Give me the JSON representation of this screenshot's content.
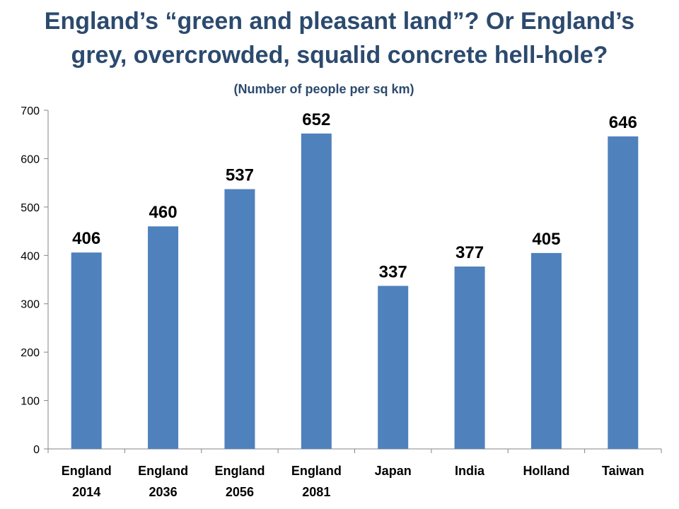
{
  "slide": {
    "title_line_1": "England’s “green and pleasant land”? Or England’s",
    "title_line_2": "grey, overcrowded, squalid concrete hell-hole?",
    "subtitle": "(Number of people per sq km)"
  },
  "colors": {
    "bar": "#4f81bd",
    "title": "#2c4a6e",
    "axis": "#868686"
  },
  "chart_data": {
    "type": "bar",
    "title": "England’s “green and pleasant land”? Or England’s grey, overcrowded, squalid concrete hell-hole?",
    "subtitle": "(Number of people per sq km)",
    "categories": [
      [
        "England",
        "2014"
      ],
      [
        "England",
        "2036"
      ],
      [
        "England",
        "2056"
      ],
      [
        "England",
        "2081"
      ],
      [
        "Japan"
      ],
      [
        "India"
      ],
      [
        "Holland"
      ],
      [
        "Taiwan"
      ]
    ],
    "values": [
      406,
      460,
      537,
      652,
      337,
      377,
      405,
      646
    ],
    "data_labels": [
      "406",
      "460",
      "537",
      "652",
      "337",
      "377",
      "405",
      "646"
    ],
    "xlabel": "",
    "ylabel": "",
    "ylim": [
      0,
      700
    ],
    "yticks": [
      0,
      100,
      200,
      300,
      400,
      500,
      600,
      700
    ],
    "grid": false,
    "legend": "none"
  }
}
